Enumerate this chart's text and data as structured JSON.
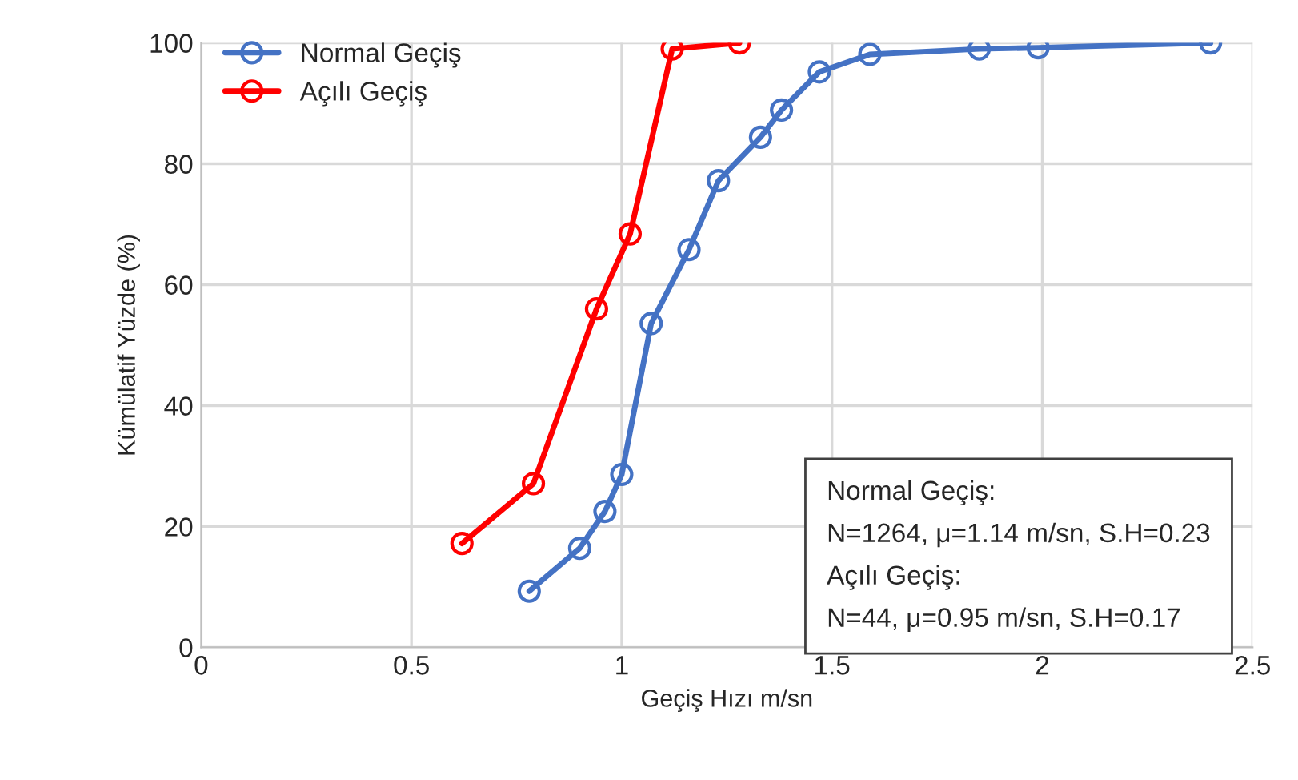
{
  "chart_data": {
    "type": "line",
    "xlabel": "Geçiş Hızı m/sn",
    "ylabel": "Kümülatif Yüzde (%)",
    "xlim": [
      0,
      2.5
    ],
    "xticks": [
      0,
      0.5,
      1,
      1.5,
      2,
      2.5
    ],
    "ylim": [
      0,
      100
    ],
    "yticks": [
      0,
      20,
      40,
      60,
      80,
      100
    ],
    "grid": true,
    "legend": "top left",
    "marker": "circle",
    "line_style": "solid",
    "series": [
      {
        "name": "Normal Geçiş",
        "color": "#4472c4",
        "x": [
          0.78,
          0.9,
          0.96,
          1.0,
          1.07,
          1.16,
          1.23,
          1.33,
          1.38,
          1.47,
          1.59,
          1.85,
          1.99,
          2.4
        ],
        "values": [
          9.3,
          16.4,
          22.5,
          28.6,
          53.6,
          65.8,
          77.2,
          84.4,
          88.9,
          95.2,
          98.1,
          99.0,
          99.2,
          100
        ]
      },
      {
        "name": "Açılı Geçiş",
        "color": "#ff0000",
        "x": [
          0.62,
          0.79,
          0.94,
          1.02,
          1.12,
          1.28
        ],
        "values": [
          17.2,
          27.1,
          56.0,
          68.4,
          99.0,
          100
        ]
      }
    ],
    "annotations": [
      "Normal Geçiş:",
      "N=1264, μ=1.14 m/sn, S.H=0.23",
      "Açılı Geçiş:",
      "N=44, μ=0.95 m/sn, S.H=0.17"
    ]
  }
}
